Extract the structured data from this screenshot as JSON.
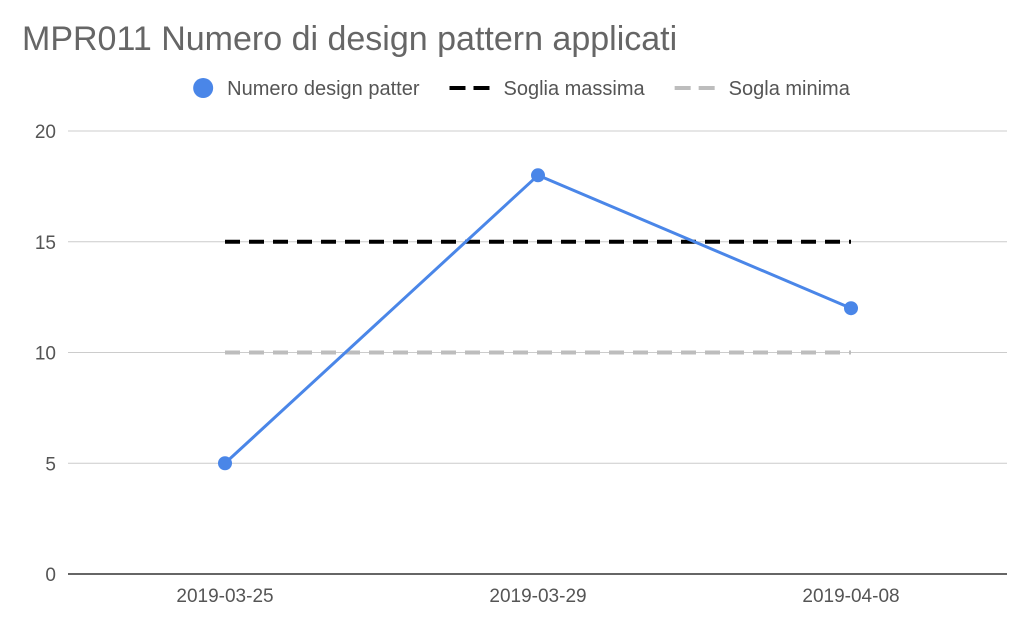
{
  "chart_data": {
    "type": "line",
    "title": "MPR011 Numero di design pattern applicati",
    "xlabel": "",
    "ylabel": "",
    "categories": [
      "2019-03-25",
      "2019-03-29",
      "2019-04-08"
    ],
    "ylim": [
      0,
      20
    ],
    "yticks": [
      0,
      5,
      10,
      15,
      20
    ],
    "grid": true,
    "legend_position": "top",
    "series": [
      {
        "name": "Numero design patter",
        "values": [
          5,
          18,
          12
        ],
        "color": "#4a86e8",
        "style": "line-markers"
      },
      {
        "name": "Soglia massima",
        "values": [
          15,
          15,
          15
        ],
        "color": "#000000",
        "style": "dashed"
      },
      {
        "name": "Sogla minima",
        "values": [
          10,
          10,
          10
        ],
        "color": "#bdbdbd",
        "style": "dashed"
      }
    ]
  }
}
